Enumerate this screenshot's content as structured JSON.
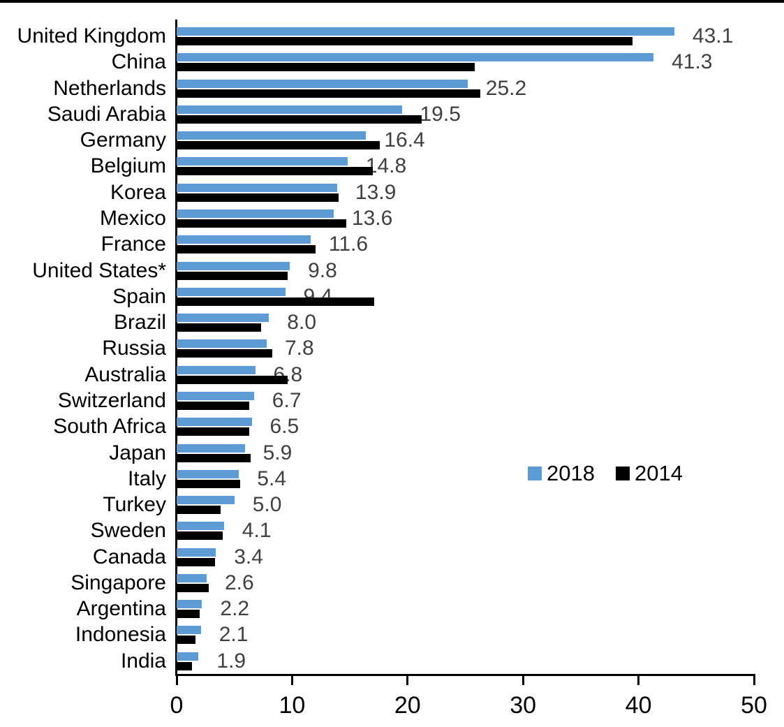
{
  "chart_data": {
    "type": "bar",
    "orientation": "horizontal",
    "title": "",
    "xlabel": "",
    "ylabel": "",
    "xlim": [
      0,
      50
    ],
    "x_ticks": [
      "0",
      "10",
      "20",
      "30",
      "40",
      "50"
    ],
    "grid": false,
    "legend_position": "middle-right",
    "categories": [
      "United Kingdom",
      "China",
      "Netherlands",
      "Saudi Arabia",
      "Germany",
      "Belgium",
      "Korea",
      "Mexico",
      "France",
      "United States*",
      "Spain",
      "Brazil",
      "Russia",
      "Australia",
      "Switzerland",
      "South Africa",
      "Japan",
      "Italy",
      "Turkey",
      "Sweden",
      "Canada",
      "Singapore",
      "Argentina",
      "Indonesia",
      "India"
    ],
    "series": [
      {
        "name": "2018",
        "color": "#5D9BD5",
        "values": [
          43.1,
          41.3,
          25.2,
          19.5,
          16.4,
          14.8,
          13.9,
          13.6,
          11.6,
          9.8,
          9.4,
          8.0,
          7.8,
          6.8,
          6.7,
          6.5,
          5.9,
          5.4,
          5.0,
          4.1,
          3.4,
          2.6,
          2.2,
          2.1,
          1.9
        ],
        "data_labels": [
          "43.1",
          "41.3",
          "25.2",
          "19.5",
          "16.4",
          "14.8",
          "13.9",
          "13.6",
          "11.6",
          "9.8",
          "9.4",
          "8.0",
          "7.8",
          "6.8",
          "6.7",
          "6.5",
          "5.9",
          "5.4",
          "5.0",
          "4.1",
          "3.4",
          "2.6",
          "2.2",
          "2.1",
          "1.9"
        ]
      },
      {
        "name": "2014",
        "color": "#000000",
        "values": [
          39.5,
          25.8,
          26.3,
          21.2,
          17.6,
          17.0,
          14.0,
          14.7,
          12.0,
          9.6,
          17.1,
          7.3,
          8.3,
          9.6,
          6.3,
          6.3,
          6.4,
          5.5,
          3.8,
          4.0,
          3.3,
          2.8,
          2.0,
          1.6,
          1.3
        ]
      }
    ],
    "value_label_color": "#404040",
    "axis_color": "#000000"
  }
}
